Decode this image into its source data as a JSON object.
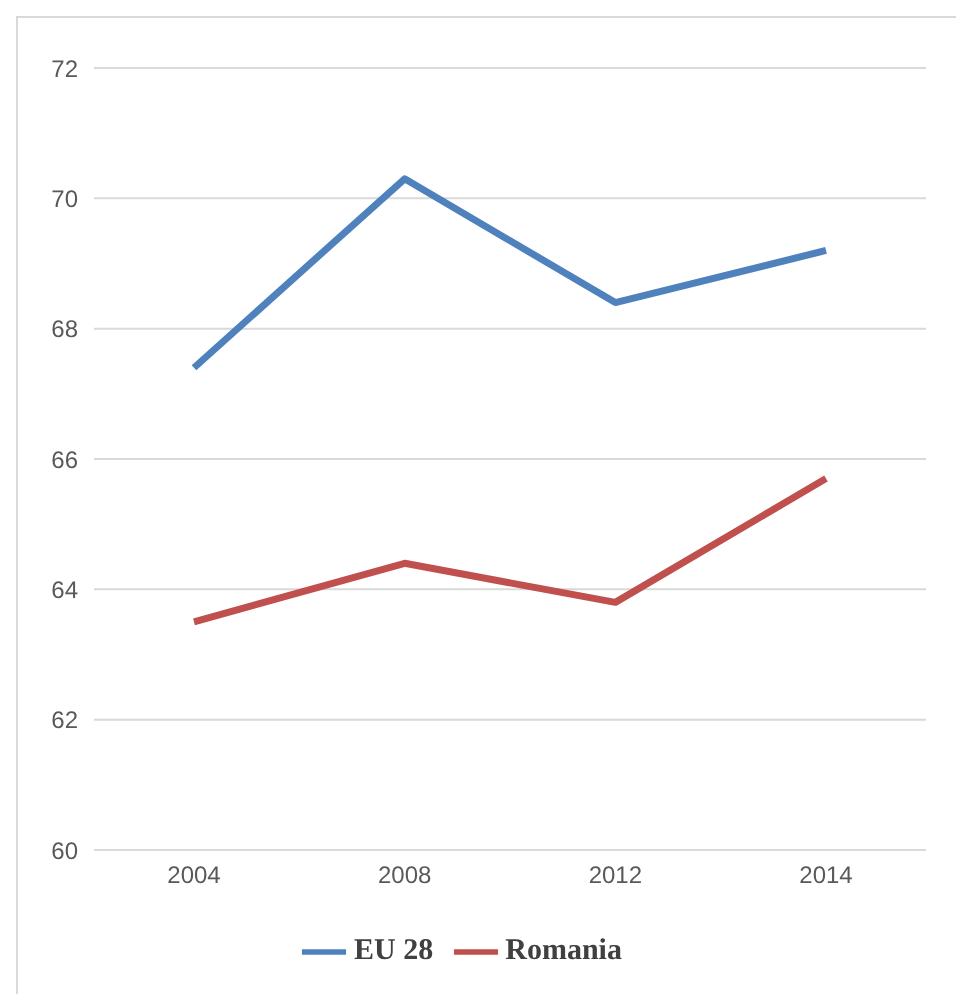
{
  "chart_data": {
    "type": "line",
    "categories": [
      "2004",
      "2008",
      "2012",
      "2014"
    ],
    "series": [
      {
        "name": "EU 28",
        "color": "#4f81bd",
        "values": [
          67.4,
          70.3,
          68.4,
          69.2
        ]
      },
      {
        "name": "Romania",
        "color": "#c0504d",
        "values": [
          63.5,
          64.4,
          63.8,
          65.7
        ]
      }
    ],
    "ylim": [
      60,
      72
    ],
    "yticks": [
      60,
      62,
      64,
      66,
      68,
      70,
      72
    ],
    "grid": "y",
    "legend": "bottom",
    "marker": "none"
  }
}
